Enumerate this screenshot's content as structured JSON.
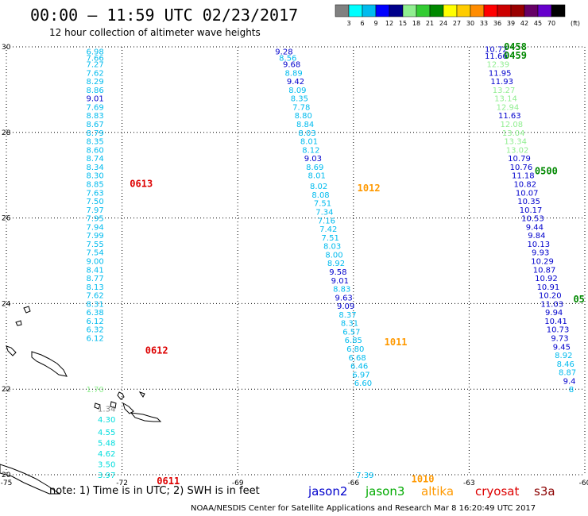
{
  "title": "00:00 – 11:59 UTC 02/23/2017",
  "subtitle": "12 hour collection of altimeter wave heights",
  "note": "note: 1) Time is in UTC; 2) SWH is in feet",
  "credit": "NOAA/NESDIS Center for Satellite Applications and Research   Mar  8 16:20:49 UTC 2017",
  "satellites": [
    {
      "name": "jason2",
      "color": "#0000cc"
    },
    {
      "name": "jason3",
      "color": "#00aa00"
    },
    {
      "name": "altika",
      "color": "#ff9900"
    },
    {
      "name": "cryosat",
      "color": "#dd0000"
    },
    {
      "name": "s3a",
      "color": "#8b0000"
    }
  ],
  "legend": {
    "unit": "(ft)",
    "colors": [
      "#808080",
      "#00ffff",
      "#00bbee",
      "#0000ff",
      "#00008b",
      "#90ee90",
      "#33cc33",
      "#008800",
      "#ffff00",
      "#ffcc00",
      "#ff8c00",
      "#ff0000",
      "#cc0000",
      "#990000",
      "#660066",
      "#6600cc",
      "#000000"
    ],
    "labels": [
      "3",
      "6",
      "9",
      "12",
      "15",
      "18",
      "21",
      "24",
      "27",
      "30",
      "33",
      "36",
      "39",
      "42",
      "45",
      "70"
    ]
  },
  "chart_data": {
    "type": "scatter",
    "title": "00:00 – 11:59 UTC 02/23/2017",
    "xlim": [
      -75,
      -60
    ],
    "ylim": [
      20,
      30
    ],
    "x_ticks": [
      "-75",
      "-72",
      "-69",
      "-66",
      "-63",
      "-60"
    ],
    "y_ticks": [
      "20",
      "22",
      "24",
      "26",
      "28",
      "30"
    ],
    "grid": true,
    "time_labels": [
      {
        "text": "0458",
        "lon": -62.1,
        "lat": 30.0,
        "color": "#008800"
      },
      {
        "text": "0459",
        "lon": -62.1,
        "lat": 29.8,
        "color": "#008800"
      },
      {
        "text": "0500",
        "lon": -61.3,
        "lat": 27.1,
        "color": "#008800"
      },
      {
        "text": "05",
        "lon": -60.3,
        "lat": 24.1,
        "color": "#008800"
      },
      {
        "text": "0613",
        "lon": -71.8,
        "lat": 26.8,
        "color": "#dd0000"
      },
      {
        "text": "0612",
        "lon": -71.4,
        "lat": 22.9,
        "color": "#dd0000"
      },
      {
        "text": "0611",
        "lon": -71.1,
        "lat": 19.85,
        "color": "#dd0000"
      },
      {
        "text": "1012",
        "lon": -65.9,
        "lat": 26.7,
        "color": "#ff9900"
      },
      {
        "text": "1011",
        "lon": -65.2,
        "lat": 23.1,
        "color": "#ff9900"
      },
      {
        "text": "1010",
        "lon": -64.5,
        "lat": 19.9,
        "color": "#ff9900"
      }
    ],
    "tracks": [
      {
        "name": "cryosat",
        "points": [
          {
            "lon": -72.7,
            "lat": 29.9,
            "v": "6.98",
            "c": "#00bbee"
          },
          {
            "lon": -72.7,
            "lat": 29.75,
            "v": "7.66",
            "c": "#00bbee"
          },
          {
            "lon": -72.7,
            "lat": 29.6,
            "v": "7.27",
            "c": "#00bbee"
          },
          {
            "lon": -72.7,
            "lat": 29.4,
            "v": "7.62",
            "c": "#00bbee"
          },
          {
            "lon": -72.7,
            "lat": 29.2,
            "v": "8.29",
            "c": "#00bbee"
          },
          {
            "lon": -72.7,
            "lat": 29.0,
            "v": "8.86",
            "c": "#00bbee"
          },
          {
            "lon": -72.7,
            "lat": 28.8,
            "v": "9.01",
            "c": "#0000cc"
          },
          {
            "lon": -72.7,
            "lat": 28.6,
            "v": "7.69",
            "c": "#00bbee"
          },
          {
            "lon": -72.7,
            "lat": 28.4,
            "v": "8.83",
            "c": "#00bbee"
          },
          {
            "lon": -72.7,
            "lat": 28.2,
            "v": "8.67",
            "c": "#00bbee"
          },
          {
            "lon": -72.7,
            "lat": 28.0,
            "v": "8.79",
            "c": "#00bbee"
          },
          {
            "lon": -72.7,
            "lat": 27.8,
            "v": "8.35",
            "c": "#00bbee"
          },
          {
            "lon": -72.7,
            "lat": 27.6,
            "v": "8.60",
            "c": "#00bbee"
          },
          {
            "lon": -72.7,
            "lat": 27.4,
            "v": "8.74",
            "c": "#00bbee"
          },
          {
            "lon": -72.7,
            "lat": 27.2,
            "v": "8.34",
            "c": "#00bbee"
          },
          {
            "lon": -72.7,
            "lat": 27.0,
            "v": "8.30",
            "c": "#00bbee"
          },
          {
            "lon": -72.7,
            "lat": 26.8,
            "v": "8.85",
            "c": "#00bbee"
          },
          {
            "lon": -72.7,
            "lat": 26.6,
            "v": "7.63",
            "c": "#00bbee"
          },
          {
            "lon": -72.7,
            "lat": 26.4,
            "v": "7.50",
            "c": "#00bbee"
          },
          {
            "lon": -72.7,
            "lat": 26.2,
            "v": "7.97",
            "c": "#00bbee"
          },
          {
            "lon": -72.7,
            "lat": 26.0,
            "v": "7.95",
            "c": "#00bbee"
          },
          {
            "lon": -72.7,
            "lat": 25.8,
            "v": "7.94",
            "c": "#00bbee"
          },
          {
            "lon": -72.7,
            "lat": 25.6,
            "v": "7.99",
            "c": "#00bbee"
          },
          {
            "lon": -72.7,
            "lat": 25.4,
            "v": "7.55",
            "c": "#00bbee"
          },
          {
            "lon": -72.7,
            "lat": 25.2,
            "v": "7.54",
            "c": "#00bbee"
          },
          {
            "lon": -72.7,
            "lat": 25.0,
            "v": "9.00",
            "c": "#00bbee"
          },
          {
            "lon": -72.7,
            "lat": 24.8,
            "v": "8.41",
            "c": "#00bbee"
          },
          {
            "lon": -72.7,
            "lat": 24.6,
            "v": "8.77",
            "c": "#00bbee"
          },
          {
            "lon": -72.7,
            "lat": 24.4,
            "v": "8.13",
            "c": "#00bbee"
          },
          {
            "lon": -72.7,
            "lat": 24.2,
            "v": "7.62",
            "c": "#00bbee"
          },
          {
            "lon": -72.7,
            "lat": 24.0,
            "v": "8.31",
            "c": "#00bbee"
          },
          {
            "lon": -72.7,
            "lat": 23.8,
            "v": "6.38",
            "c": "#00bbee"
          },
          {
            "lon": -72.7,
            "lat": 23.6,
            "v": "6.12",
            "c": "#00bbee"
          },
          {
            "lon": -72.7,
            "lat": 23.4,
            "v": "6.32",
            "c": "#00bbee"
          },
          {
            "lon": -72.7,
            "lat": 23.2,
            "v": "6.12",
            "c": "#00bbee"
          },
          {
            "lon": -72.7,
            "lat": 22.0,
            "v": "1.70",
            "c": "#90ee90"
          },
          {
            "lon": -72.4,
            "lat": 21.55,
            "v": "1.34",
            "c": "#808080"
          },
          {
            "lon": -72.4,
            "lat": 21.3,
            "v": "4.30",
            "c": "#00dddd"
          },
          {
            "lon": -72.4,
            "lat": 21.0,
            "v": "4.55",
            "c": "#00dddd"
          },
          {
            "lon": -72.4,
            "lat": 20.75,
            "v": "5.48",
            "c": "#00dddd"
          },
          {
            "lon": -72.4,
            "lat": 20.5,
            "v": "4.62",
            "c": "#00dddd"
          },
          {
            "lon": -72.4,
            "lat": 20.25,
            "v": "3.50",
            "c": "#00dddd"
          },
          {
            "lon": -72.4,
            "lat": 20.0,
            "v": "3.97",
            "c": "#00dddd"
          }
        ]
      },
      {
        "name": "altika",
        "points": [
          {
            "lon": -67.8,
            "lat": 29.9,
            "v": "9.28",
            "c": "#0000cc"
          },
          {
            "lon": -67.7,
            "lat": 29.75,
            "v": "8.56",
            "c": "#00bbee"
          },
          {
            "lon": -67.6,
            "lat": 29.6,
            "v": "9.68",
            "c": "#0000cc"
          },
          {
            "lon": -67.55,
            "lat": 29.4,
            "v": "8.89",
            "c": "#00bbee"
          },
          {
            "lon": -67.5,
            "lat": 29.2,
            "v": "9.42",
            "c": "#0000cc"
          },
          {
            "lon": -67.45,
            "lat": 29.0,
            "v": "8.09",
            "c": "#00bbee"
          },
          {
            "lon": -67.4,
            "lat": 28.8,
            "v": "8.35",
            "c": "#00bbee"
          },
          {
            "lon": -67.35,
            "lat": 28.6,
            "v": "7.78",
            "c": "#00bbee"
          },
          {
            "lon": -67.3,
            "lat": 28.4,
            "v": "8.80",
            "c": "#00bbee"
          },
          {
            "lon": -67.25,
            "lat": 28.2,
            "v": "8.84",
            "c": "#00bbee"
          },
          {
            "lon": -67.2,
            "lat": 28.0,
            "v": "8.03",
            "c": "#00bbee"
          },
          {
            "lon": -67.15,
            "lat": 27.8,
            "v": "8.01",
            "c": "#00bbee"
          },
          {
            "lon": -67.1,
            "lat": 27.6,
            "v": "8.12",
            "c": "#00bbee"
          },
          {
            "lon": -67.05,
            "lat": 27.4,
            "v": "9.03",
            "c": "#0000cc"
          },
          {
            "lon": -67.0,
            "lat": 27.2,
            "v": "8.69",
            "c": "#00bbee"
          },
          {
            "lon": -66.95,
            "lat": 27.0,
            "v": "8.01",
            "c": "#00bbee"
          },
          {
            "lon": -66.9,
            "lat": 26.75,
            "v": "8.02",
            "c": "#00bbee"
          },
          {
            "lon": -66.85,
            "lat": 26.55,
            "v": "8.08",
            "c": "#00bbee"
          },
          {
            "lon": -66.8,
            "lat": 26.35,
            "v": "7.51",
            "c": "#00bbee"
          },
          {
            "lon": -66.75,
            "lat": 26.15,
            "v": "7.34",
            "c": "#00bbee"
          },
          {
            "lon": -66.7,
            "lat": 25.95,
            "v": "7.16",
            "c": "#00bbee"
          },
          {
            "lon": -66.65,
            "lat": 25.75,
            "v": "7.42",
            "c": "#00bbee"
          },
          {
            "lon": -66.6,
            "lat": 25.55,
            "v": "7.51",
            "c": "#00bbee"
          },
          {
            "lon": -66.55,
            "lat": 25.35,
            "v": "8.03",
            "c": "#00bbee"
          },
          {
            "lon": -66.5,
            "lat": 25.15,
            "v": "8.00",
            "c": "#00bbee"
          },
          {
            "lon": -66.45,
            "lat": 24.95,
            "v": "8.92",
            "c": "#00bbee"
          },
          {
            "lon": -66.4,
            "lat": 24.75,
            "v": "9.58",
            "c": "#0000cc"
          },
          {
            "lon": -66.35,
            "lat": 24.55,
            "v": "9.01",
            "c": "#0000cc"
          },
          {
            "lon": -66.3,
            "lat": 24.35,
            "v": "8.83",
            "c": "#00bbee"
          },
          {
            "lon": -66.25,
            "lat": 24.15,
            "v": "9.63",
            "c": "#0000cc"
          },
          {
            "lon": -66.2,
            "lat": 23.95,
            "v": "9.09",
            "c": "#0000cc"
          },
          {
            "lon": -66.15,
            "lat": 23.75,
            "v": "8.37",
            "c": "#00bbee"
          },
          {
            "lon": -66.1,
            "lat": 23.55,
            "v": "8.31",
            "c": "#00bbee"
          },
          {
            "lon": -66.05,
            "lat": 23.35,
            "v": "6.57",
            "c": "#00bbee"
          },
          {
            "lon": -66.0,
            "lat": 23.15,
            "v": "6.85",
            "c": "#00bbee"
          },
          {
            "lon": -65.95,
            "lat": 22.95,
            "v": "6.80",
            "c": "#00bbee"
          },
          {
            "lon": -65.9,
            "lat": 22.75,
            "v": "6.68",
            "c": "#00bbee"
          },
          {
            "lon": -65.85,
            "lat": 22.55,
            "v": "6.46",
            "c": "#00bbee"
          },
          {
            "lon": -65.8,
            "lat": 22.35,
            "v": "6.97",
            "c": "#00bbee"
          },
          {
            "lon": -65.75,
            "lat": 22.15,
            "v": "6.60",
            "c": "#00bbee"
          },
          {
            "lon": -65.7,
            "lat": 20.0,
            "v": "7.39",
            "c": "#00bbee"
          }
        ]
      },
      {
        "name": "jason3",
        "points": [
          {
            "lon": -62.3,
            "lat": 29.95,
            "v": "10.72",
            "c": "#0000cc"
          },
          {
            "lon": -62.3,
            "lat": 29.8,
            "v": "11.66",
            "c": "#0000cc"
          },
          {
            "lon": -62.25,
            "lat": 29.6,
            "v": "12.39",
            "c": "#90ee90"
          },
          {
            "lon": -62.2,
            "lat": 29.4,
            "v": "11.95",
            "c": "#0000cc"
          },
          {
            "lon": -62.15,
            "lat": 29.2,
            "v": "11.93",
            "c": "#0000cc"
          },
          {
            "lon": -62.1,
            "lat": 29.0,
            "v": "13.27",
            "c": "#90ee90"
          },
          {
            "lon": -62.05,
            "lat": 28.8,
            "v": "13.14",
            "c": "#90ee90"
          },
          {
            "lon": -62.0,
            "lat": 28.6,
            "v": "12.94",
            "c": "#90ee90"
          },
          {
            "lon": -61.95,
            "lat": 28.4,
            "v": "11.63",
            "c": "#0000cc"
          },
          {
            "lon": -61.9,
            "lat": 28.2,
            "v": "12.08",
            "c": "#90ee90"
          },
          {
            "lon": -61.85,
            "lat": 28.0,
            "v": "13.04",
            "c": "#90ee90"
          },
          {
            "lon": -61.8,
            "lat": 27.8,
            "v": "13.34",
            "c": "#90ee90"
          },
          {
            "lon": -61.75,
            "lat": 27.6,
            "v": "13.02",
            "c": "#90ee90"
          },
          {
            "lon": -61.7,
            "lat": 27.4,
            "v": "10.79",
            "c": "#0000cc"
          },
          {
            "lon": -61.65,
            "lat": 27.2,
            "v": "10.76",
            "c": "#0000cc"
          },
          {
            "lon": -61.6,
            "lat": 27.0,
            "v": "11.18",
            "c": "#0000cc"
          },
          {
            "lon": -61.55,
            "lat": 26.8,
            "v": "10.82",
            "c": "#0000cc"
          },
          {
            "lon": -61.5,
            "lat": 26.6,
            "v": "10.07",
            "c": "#0000cc"
          },
          {
            "lon": -61.45,
            "lat": 26.4,
            "v": "10.35",
            "c": "#0000cc"
          },
          {
            "lon": -61.4,
            "lat": 26.2,
            "v": "10.17",
            "c": "#0000cc"
          },
          {
            "lon": -61.35,
            "lat": 26.0,
            "v": "10.53",
            "c": "#0000cc"
          },
          {
            "lon": -61.3,
            "lat": 25.8,
            "v": "9.44",
            "c": "#0000cc"
          },
          {
            "lon": -61.25,
            "lat": 25.6,
            "v": "9.84",
            "c": "#0000cc"
          },
          {
            "lon": -61.2,
            "lat": 25.4,
            "v": "10.13",
            "c": "#0000cc"
          },
          {
            "lon": -61.15,
            "lat": 25.2,
            "v": "9.93",
            "c": "#0000cc"
          },
          {
            "lon": -61.1,
            "lat": 25.0,
            "v": "10.29",
            "c": "#0000cc"
          },
          {
            "lon": -61.05,
            "lat": 24.8,
            "v": "10.87",
            "c": "#0000cc"
          },
          {
            "lon": -61.0,
            "lat": 24.6,
            "v": "10.92",
            "c": "#0000cc"
          },
          {
            "lon": -60.95,
            "lat": 24.4,
            "v": "10.91",
            "c": "#0000cc"
          },
          {
            "lon": -60.9,
            "lat": 24.2,
            "v": "10.20",
            "c": "#0000cc"
          },
          {
            "lon": -60.85,
            "lat": 24.0,
            "v": "11.03",
            "c": "#0000cc"
          },
          {
            "lon": -60.8,
            "lat": 23.8,
            "v": "9.94",
            "c": "#0000cc"
          },
          {
            "lon": -60.75,
            "lat": 23.6,
            "v": "10.41",
            "c": "#0000cc"
          },
          {
            "lon": -60.7,
            "lat": 23.4,
            "v": "10.73",
            "c": "#0000cc"
          },
          {
            "lon": -60.65,
            "lat": 23.2,
            "v": "9.73",
            "c": "#0000cc"
          },
          {
            "lon": -60.6,
            "lat": 23.0,
            "v": "9.45",
            "c": "#0000cc"
          },
          {
            "lon": -60.55,
            "lat": 22.8,
            "v": "8.92",
            "c": "#00bbee"
          },
          {
            "lon": -60.5,
            "lat": 22.6,
            "v": "8.46",
            "c": "#00bbee"
          },
          {
            "lon": -60.45,
            "lat": 22.4,
            "v": "8.87",
            "c": "#00bbee"
          },
          {
            "lon": -60.4,
            "lat": 22.2,
            "v": "9.4",
            "c": "#0000cc"
          },
          {
            "lon": -60.35,
            "lat": 22.0,
            "v": "8",
            "c": "#00bbee"
          }
        ]
      }
    ]
  }
}
